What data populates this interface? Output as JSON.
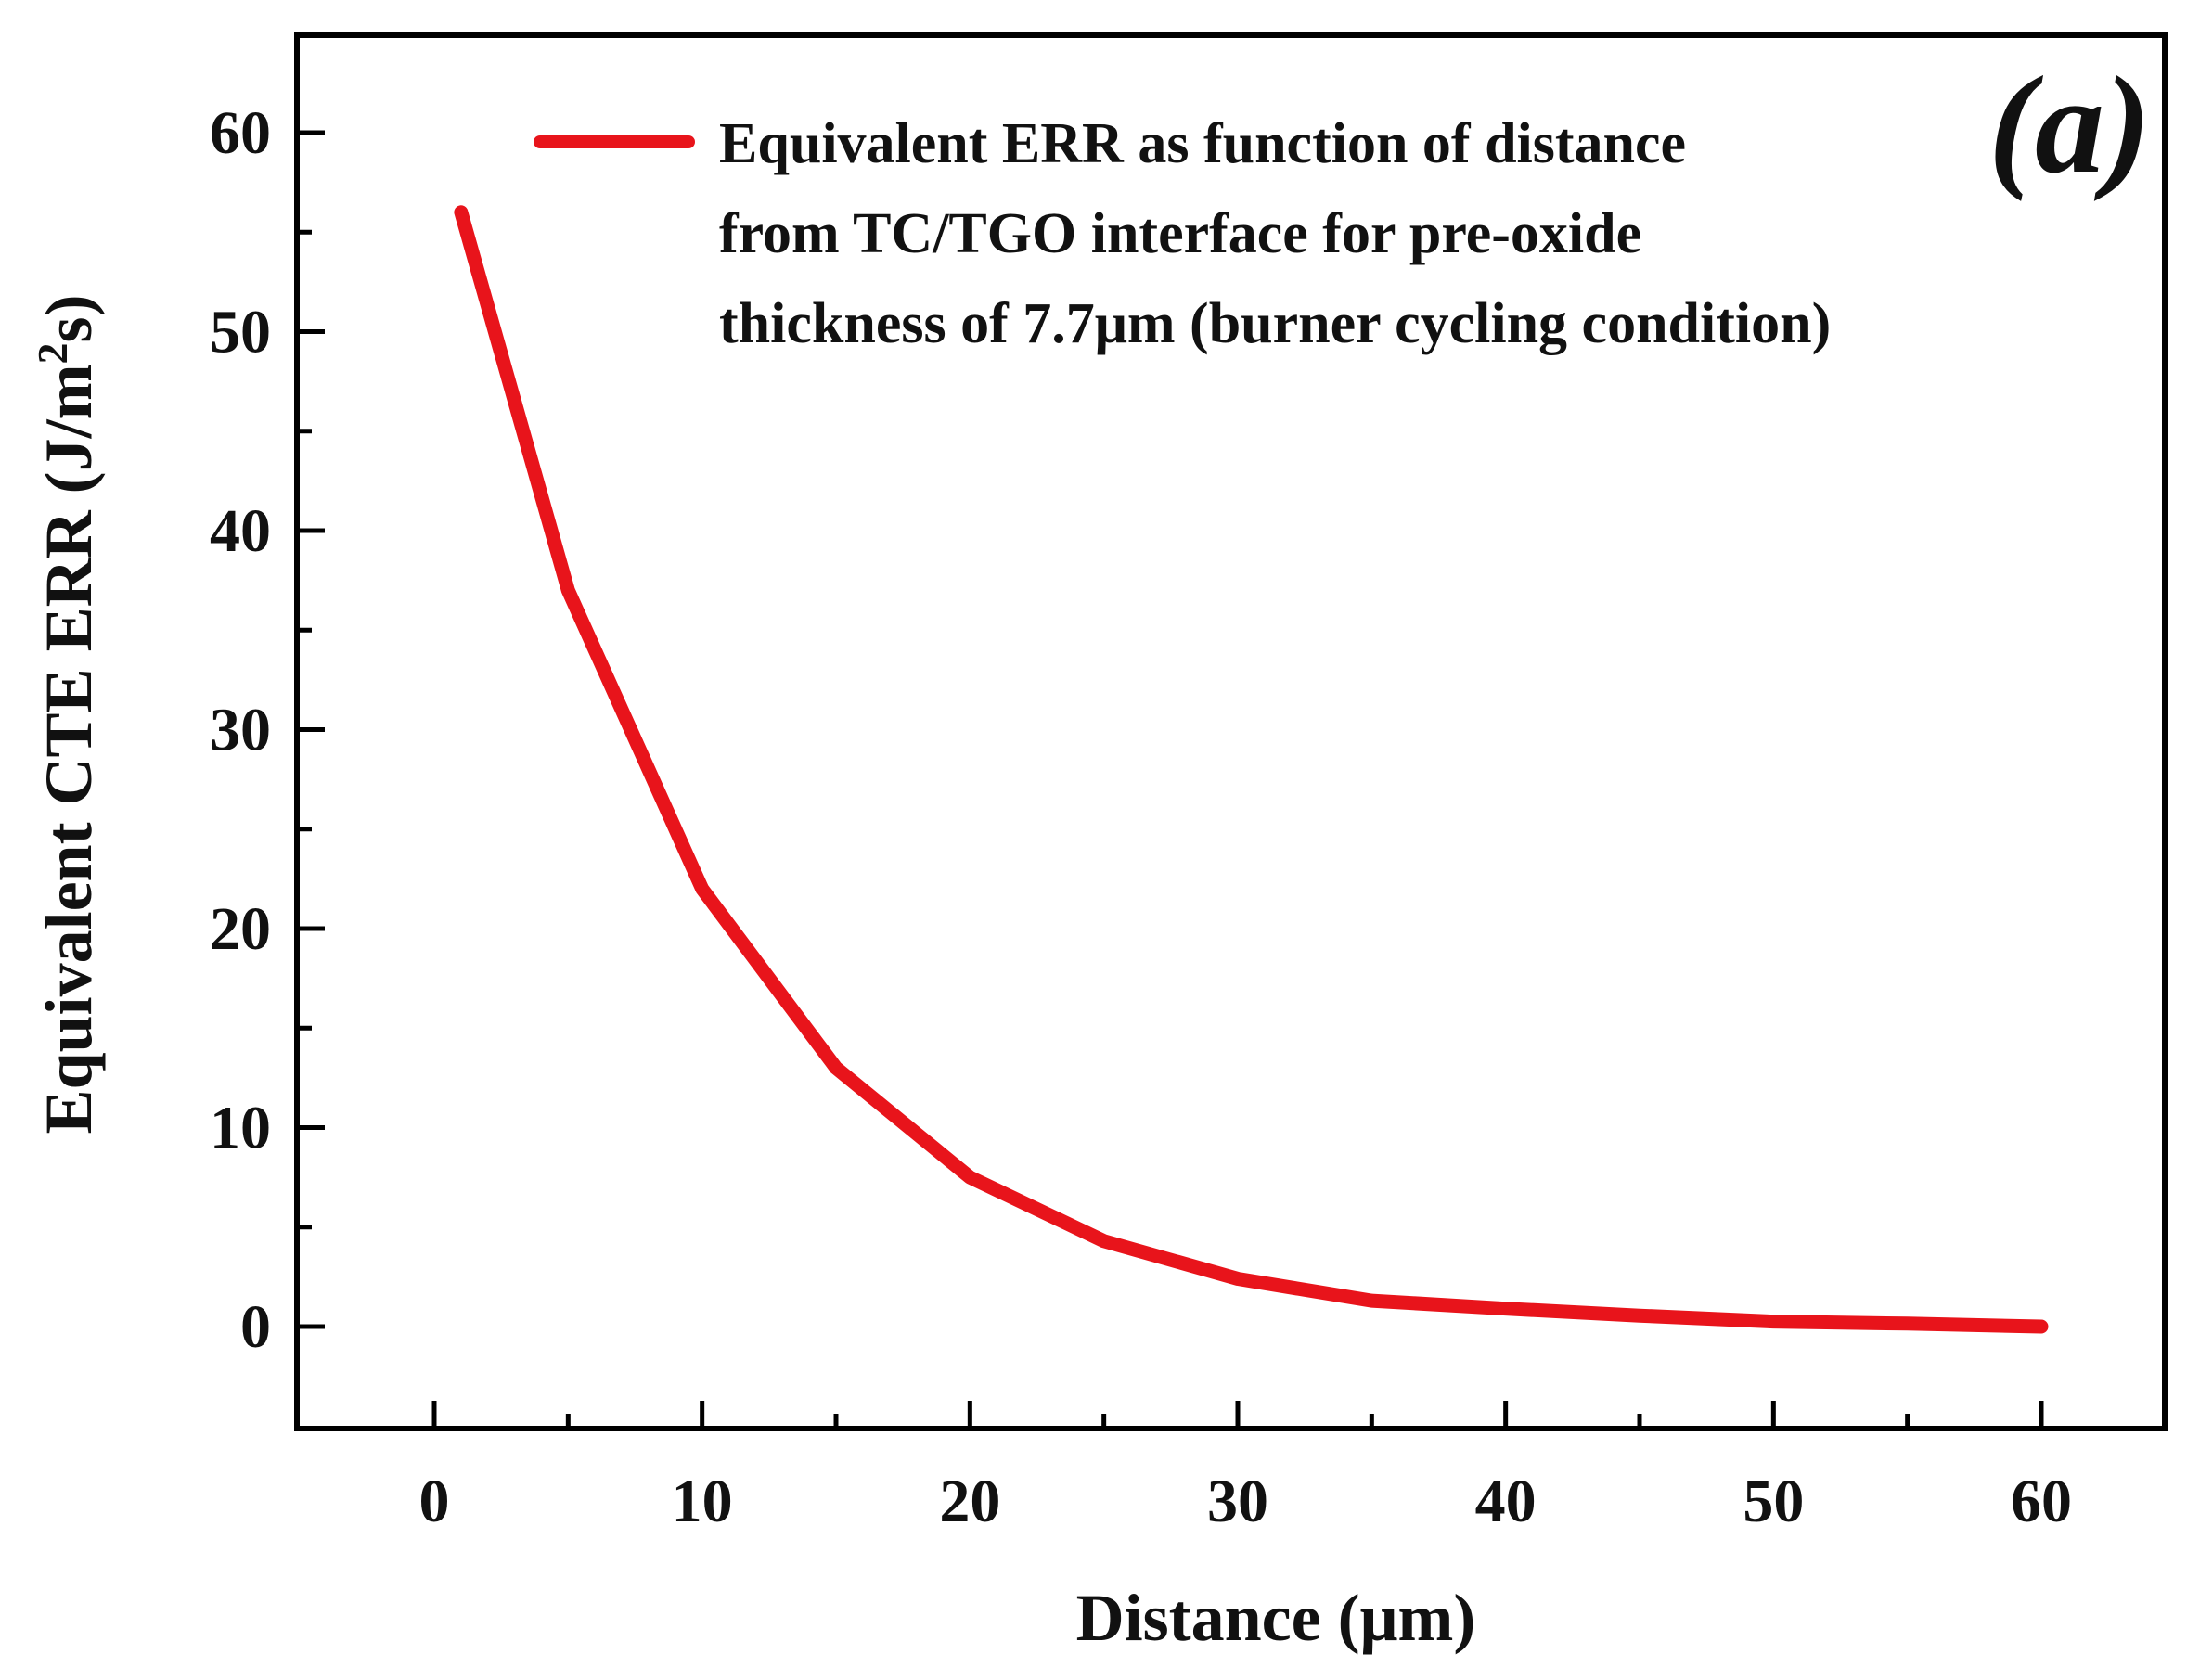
{
  "chart_data": {
    "type": "line",
    "panel_label": "(a)",
    "xlabel": "Distance (μm)",
    "ylabel_main": "Equivalent CTE ERR  (J/m",
    "ylabel_sup": "2",
    "ylabel_tail": "s)",
    "xlim": [
      -5,
      65
    ],
    "ylim": [
      -5,
      65
    ],
    "xticks": [
      0,
      10,
      20,
      30,
      40,
      50,
      60
    ],
    "yticks": [
      0,
      10,
      20,
      30,
      40,
      50,
      60
    ],
    "xtick_labels": [
      "0",
      "10",
      "20",
      "30",
      "40",
      "50",
      "60"
    ],
    "ytick_labels": [
      "0",
      "10",
      "20",
      "30",
      "40",
      "50",
      "60"
    ],
    "legend_position": "top-right",
    "colors": {
      "series": "#e8141b",
      "axis": "#000000"
    },
    "series": [
      {
        "name_lines": [
          "Equivalent ERR as function of distance",
          "from TC/TGO interface for pre-oxide",
          "thickness of 7.7μm (burner cycling condition)"
        ],
        "x": [
          1,
          5,
          10,
          15,
          20,
          25,
          30,
          35,
          40,
          45,
          50,
          55,
          60
        ],
        "y": [
          56,
          37,
          22,
          13,
          7.5,
          4.3,
          2.4,
          1.3,
          0.9,
          0.55,
          0.25,
          0.15,
          0.0
        ]
      }
    ]
  }
}
